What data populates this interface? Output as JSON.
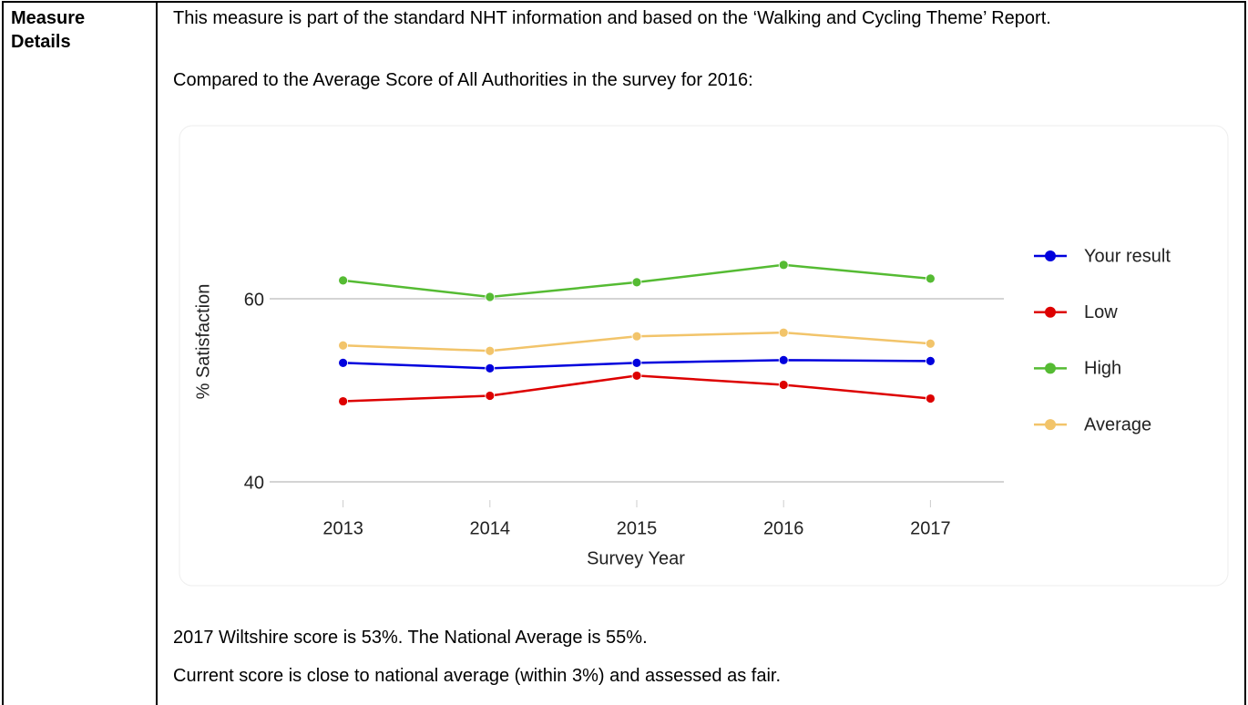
{
  "label": "Measure Details",
  "intro": [
    "This measure is part of the standard NHT information and based on the ‘Walking and Cycling Theme’ Report.",
    "Compared to the Average Score of All Authorities in the survey for 2016:"
  ],
  "chart_data": {
    "type": "line",
    "x_label": "Survey Year",
    "y_label": "% Satisfaction",
    "x": [
      2013,
      2014,
      2015,
      2016,
      2017
    ],
    "xlim": [
      2012.5,
      2017.5
    ],
    "xticks": [
      2013,
      2014,
      2015,
      2016,
      2017
    ],
    "ylim": [
      40,
      66
    ],
    "yticks": [
      40,
      60
    ],
    "grid": true,
    "legend": "right",
    "series": [
      {
        "name": "Your result",
        "color": "#0000dd",
        "values": [
          53.0,
          52.4,
          53.0,
          53.3,
          53.2
        ]
      },
      {
        "name": "Low",
        "color": "#dd0000",
        "values": [
          48.8,
          49.4,
          51.6,
          50.6,
          49.1
        ]
      },
      {
        "name": "High",
        "color": "#55bb33",
        "values": [
          62.0,
          60.2,
          61.8,
          63.7,
          62.2
        ]
      },
      {
        "name": "Average",
        "color": "#f2c46a",
        "values": [
          54.9,
          54.3,
          55.9,
          56.3,
          55.1
        ]
      }
    ]
  },
  "conclusion": [
    "2017 Wiltshire score is 53%. The National Average is 55%.",
    "Current score is close to national average (within 3%) and assessed as fair."
  ]
}
